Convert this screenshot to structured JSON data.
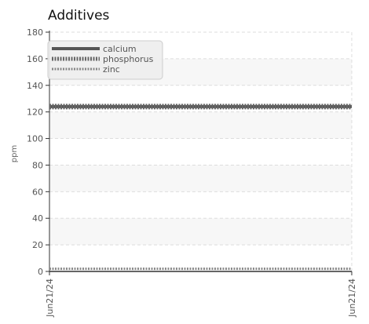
{
  "chart_data": {
    "type": "line",
    "title": "Additives",
    "xlabel": "",
    "ylabel": "ppm",
    "x": [
      "Jun21/24",
      "Jun21/24"
    ],
    "x_tick_labels": [
      "Jun21/24",
      "Jun21/24"
    ],
    "ylim": [
      0,
      180
    ],
    "yticks": [
      0,
      20,
      40,
      60,
      80,
      100,
      120,
      140,
      160,
      180
    ],
    "grid": true,
    "legend_position": "top-left",
    "series": [
      {
        "name": "calcium",
        "values": [
          124,
          124
        ],
        "color": "#555555",
        "style": "solid"
      },
      {
        "name": "phosphorus",
        "values": [
          124,
          124
        ],
        "color": "#666666",
        "style": "dense-dashed"
      },
      {
        "name": "zinc",
        "values": [
          2,
          2
        ],
        "color": "#888888",
        "style": "dashed"
      }
    ]
  }
}
